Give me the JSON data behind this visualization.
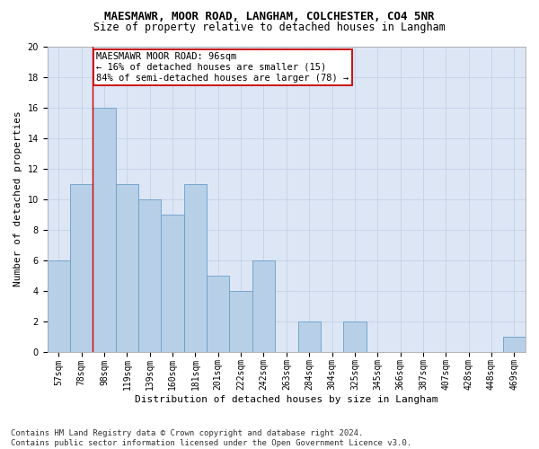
{
  "title1": "MAESMAWR, MOOR ROAD, LANGHAM, COLCHESTER, CO4 5NR",
  "title2": "Size of property relative to detached houses in Langham",
  "xlabel": "Distribution of detached houses by size in Langham",
  "ylabel": "Number of detached properties",
  "categories": [
    "57sqm",
    "78sqm",
    "98sqm",
    "119sqm",
    "139sqm",
    "160sqm",
    "181sqm",
    "201sqm",
    "222sqm",
    "242sqm",
    "263sqm",
    "284sqm",
    "304sqm",
    "325sqm",
    "345sqm",
    "366sqm",
    "387sqm",
    "407sqm",
    "428sqm",
    "448sqm",
    "469sqm"
  ],
  "values": [
    6,
    11,
    16,
    11,
    10,
    9,
    11,
    5,
    4,
    6,
    0,
    2,
    0,
    2,
    0,
    0,
    0,
    0,
    0,
    0,
    1
  ],
  "bar_color": "#b8cfe8",
  "bar_edge_color": "#6a9fc8",
  "grid_color": "#c8d4e8",
  "bg_color": "#dce6f5",
  "annotation_text": "MAESMAWR MOOR ROAD: 96sqm\n← 16% of detached houses are smaller (15)\n84% of semi-detached houses are larger (78) →",
  "annotation_box_color": "#ffffff",
  "annotation_box_edge": "#cc0000",
  "vline_color": "#cc0000",
  "vline_x_index": 2,
  "ylim": [
    0,
    20
  ],
  "yticks": [
    0,
    2,
    4,
    6,
    8,
    10,
    12,
    14,
    16,
    18,
    20
  ],
  "footer": "Contains HM Land Registry data © Crown copyright and database right 2024.\nContains public sector information licensed under the Open Government Licence v3.0.",
  "footer_fontsize": 6.5,
  "title1_fontsize": 9,
  "title2_fontsize": 8.5,
  "xlabel_fontsize": 8,
  "ylabel_fontsize": 8,
  "tick_fontsize": 7,
  "annot_fontsize": 7.5
}
